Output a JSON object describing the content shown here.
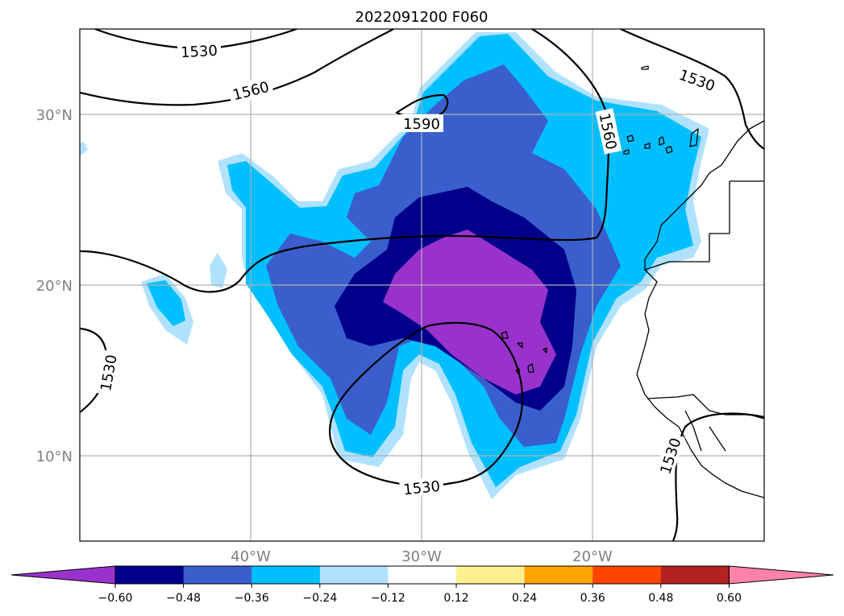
{
  "title": "2022091200 F060",
  "map": {
    "lat_labels": [
      "30°N",
      "20°N",
      "10°N"
    ],
    "lon_labels": [
      "40°W",
      "30°W",
      "20°W"
    ],
    "extent": {
      "lon_min": -50,
      "lon_max": -10,
      "lat_min": 5,
      "lat_max": 35
    },
    "gridlines": true
  },
  "contours": {
    "levels_shown": [
      "1530",
      "1560",
      "1590"
    ],
    "labels": [
      {
        "text": "1530",
        "lon": -46.9,
        "lat": 33.6,
        "rot": -3
      },
      {
        "text": "1560",
        "lon": -44.0,
        "lat": 31.1,
        "rot": -14
      },
      {
        "text": "1590",
        "lon": -30.0,
        "lat": 29.6,
        "rot": 0
      },
      {
        "text": "1560",
        "lon": -19.1,
        "lat": 28.6,
        "rot": 78
      },
      {
        "text": "1530",
        "lon": -13.9,
        "lat": 32.6,
        "rot": 20
      },
      {
        "text": "1530",
        "lon": -48.4,
        "lat": 14.9,
        "rot": -80
      },
      {
        "text": "1530",
        "lon": -30.0,
        "lat": 8.1,
        "rot": -6
      },
      {
        "text": "1530",
        "lon": -15.5,
        "lat": 10.5,
        "rot": -72
      }
    ]
  },
  "colorbar": {
    "tick_labels": [
      "−0.60",
      "−0.48",
      "−0.36",
      "−0.24",
      "−0.12",
      "0.12",
      "0.24",
      "0.36",
      "0.48",
      "0.60"
    ],
    "colors": [
      "#9932cc",
      "#00008b",
      "#3a5fcd",
      "#00bfff",
      "#b0e2ff",
      "#ffffff",
      "#fff08f",
      "#ffa500",
      "#ff4500",
      "#b22222",
      "#ff82ab"
    ],
    "extend": "both"
  },
  "fill_colors": {
    "lightest": "#b0e2ff",
    "light": "#00bfff",
    "mid": "#3a5fcd",
    "dark": "#00008b",
    "core": "#9932cc"
  }
}
